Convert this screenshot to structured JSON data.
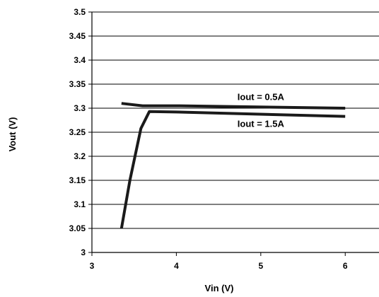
{
  "chart_data": {
    "type": "line",
    "xlabel": "Vin (V)",
    "ylabel": "Vout (V)",
    "xlim": [
      3,
      6.4
    ],
    "ylim": [
      3,
      3.5
    ],
    "xticks": [
      3,
      4,
      5,
      6
    ],
    "xtick_labels": [
      "3",
      "4",
      "5",
      "6"
    ],
    "yticks": [
      3,
      3.05,
      3.1,
      3.15,
      3.2,
      3.25,
      3.3,
      3.35,
      3.4,
      3.45,
      3.5
    ],
    "ytick_labels": [
      "3",
      "3.05",
      "3.1",
      "3.15",
      "3.2",
      "3.25",
      "3.3",
      "3.35",
      "3.4",
      "3.45",
      "3.5"
    ],
    "grid": "horizontal",
    "line_color": "#1a1a1a",
    "series": [
      {
        "name": "Iout = 0.5A",
        "x": [
          3.35,
          3.6,
          4.0,
          6.0
        ],
        "y": [
          3.31,
          3.305,
          3.305,
          3.3
        ]
      },
      {
        "name": "Iout = 1.5A",
        "x": [
          3.35,
          3.45,
          3.58,
          3.68,
          4.0,
          6.0
        ],
        "y": [
          3.05,
          3.15,
          3.258,
          3.293,
          3.292,
          3.283
        ]
      }
    ],
    "annotations": [
      {
        "text": "Iout = 0.5A",
        "x": 5.0,
        "y": 3.323
      },
      {
        "text": "Iout = 1.5A",
        "x": 5.0,
        "y": 3.267
      }
    ]
  }
}
